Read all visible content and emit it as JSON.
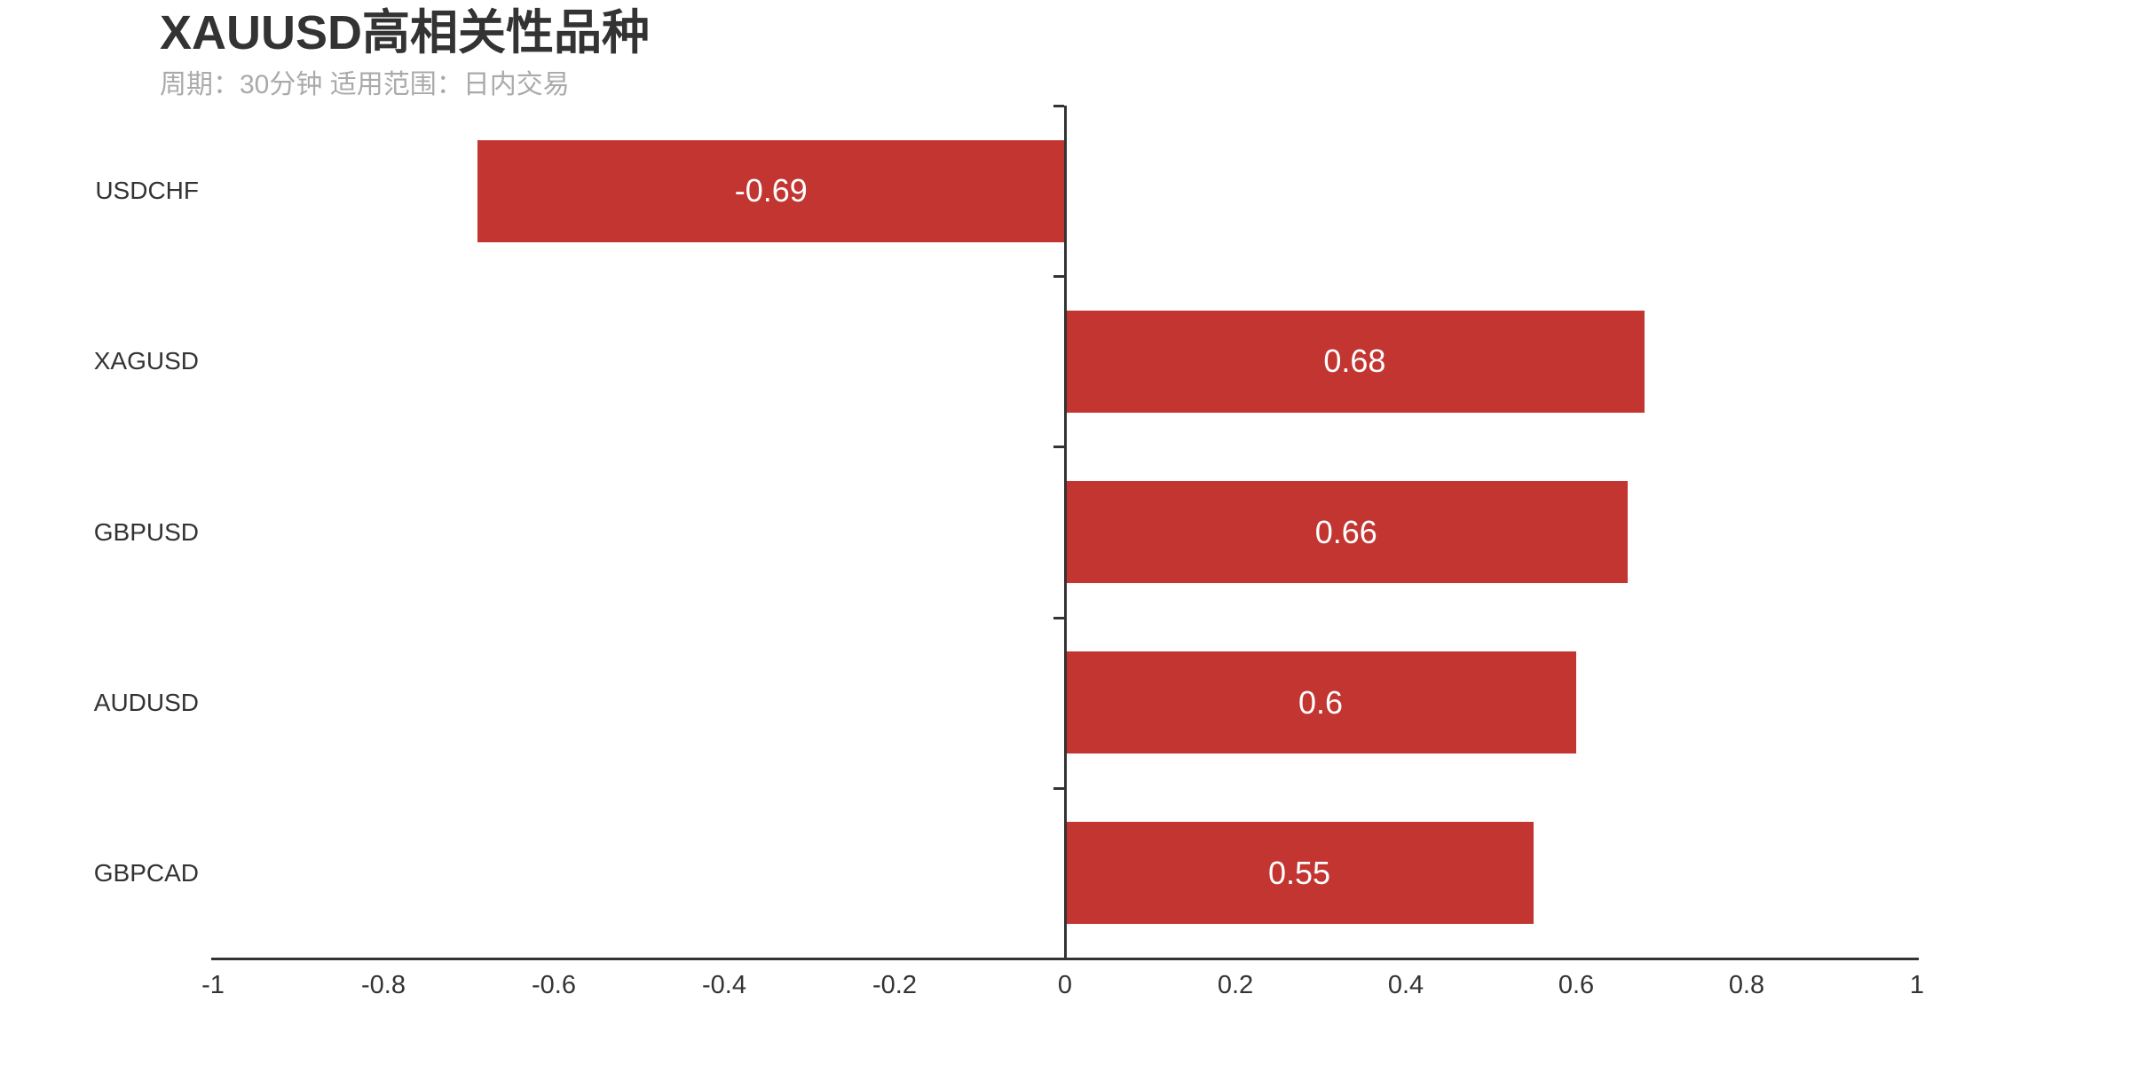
{
  "header": {
    "title": "XAUUSD高相关性品种",
    "subtitle": "周期：30分钟 适用范围：日内交易"
  },
  "colors": {
    "background": "#ffffff",
    "bar": "#c23531",
    "axis": "#333333",
    "title_text": "#333333",
    "subtitle_text": "#aaaaaa",
    "category_text": "#333333",
    "x_tick_text": "#333333",
    "bar_value_text": "#ffffff"
  },
  "chart_data": {
    "type": "bar",
    "orientation": "horizontal",
    "title": "XAUUSD高相关性品种",
    "subtitle": "周期：30分钟 适用范围：日内交易",
    "categories": [
      "USDCHF",
      "XAGUSD",
      "GBPUSD",
      "AUDUSD",
      "GBPCAD"
    ],
    "values": [
      -0.69,
      0.68,
      0.66,
      0.6,
      0.55
    ],
    "value_labels": [
      "-0.69",
      "0.68",
      "0.66",
      "0.6",
      "0.55"
    ],
    "xlabel": "",
    "ylabel": "",
    "xlim": [
      -1,
      1
    ],
    "x_ticks": [
      -1,
      -0.8,
      -0.6,
      -0.4,
      -0.2,
      0,
      0.2,
      0.4,
      0.6,
      0.8,
      1
    ],
    "x_tick_labels": [
      "-1",
      "-0.8",
      "-0.6",
      "-0.4",
      "-0.2",
      "0",
      "0.2",
      "0.4",
      "0.6",
      "0.8",
      "1"
    ],
    "grid": false,
    "legend": false,
    "value_axis_on_zero": true,
    "bar_label_position": "inside-center"
  }
}
